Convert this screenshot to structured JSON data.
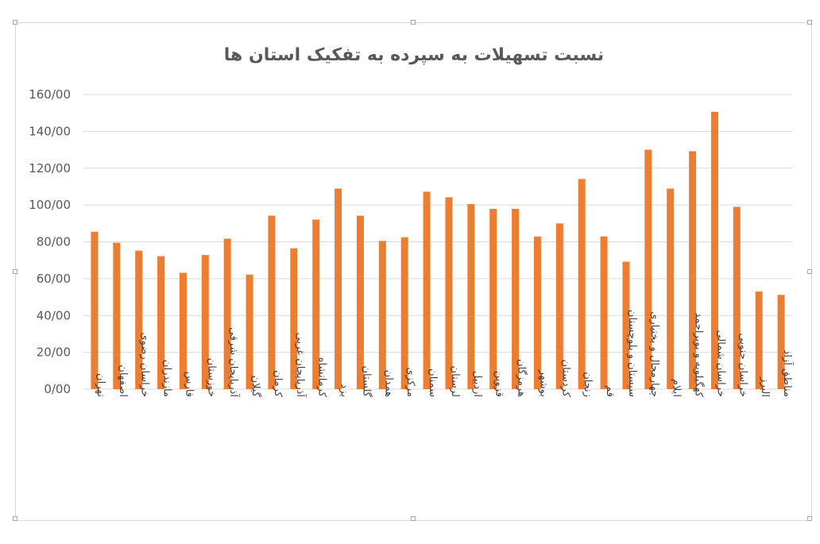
{
  "chart_data": {
    "type": "bar",
    "title": "نسبت تسهیلات به سپرده به تفکیک استان ها",
    "xlabel": "",
    "ylabel": "",
    "ylim": [
      0,
      160
    ],
    "y_ticks": [
      "0/00",
      "20/00",
      "40/00",
      "60/00",
      "80/00",
      "100/00",
      "120/00",
      "140/00",
      "160/00"
    ],
    "grid": "horizontal",
    "legend": "none",
    "bar_color": "#ED7D31",
    "categories": [
      "تهران",
      "اصفهان",
      "خراسان رضوی",
      "مازندران",
      "فارس",
      "خوزستان",
      "آذربایجان شرقی",
      "گیلان",
      "کرمان",
      "آذربایجان غربی",
      "کرمانشاه",
      "یزد",
      "گلستان",
      "همدان",
      "مرکزی",
      "سمنان",
      "لرستان",
      "اردبیل",
      "قزوین",
      "هرمزگان",
      "بوشهر",
      "کردستان",
      "زنجان",
      "قم",
      "سیستان و بلوچستان",
      "چهارمحال و بختیاری",
      "ایلام",
      "کهگیلویه و بویراحمد",
      "خراسان شمالی",
      "خراسان جنوبی",
      "البرز",
      "مناطق آزاد"
    ],
    "values": [
      85.5,
      79.5,
      75.2,
      72.2,
      63.2,
      72.8,
      81.7,
      62.2,
      94.2,
      76.5,
      92.1,
      108.9,
      94.2,
      80.5,
      82.5,
      107.2,
      104.2,
      100.5,
      97.9,
      97.9,
      82.9,
      90.0,
      114.1,
      82.9,
      69.2,
      130.0,
      108.9,
      129.2,
      150.6,
      99.0,
      53.0,
      51.2
    ]
  }
}
